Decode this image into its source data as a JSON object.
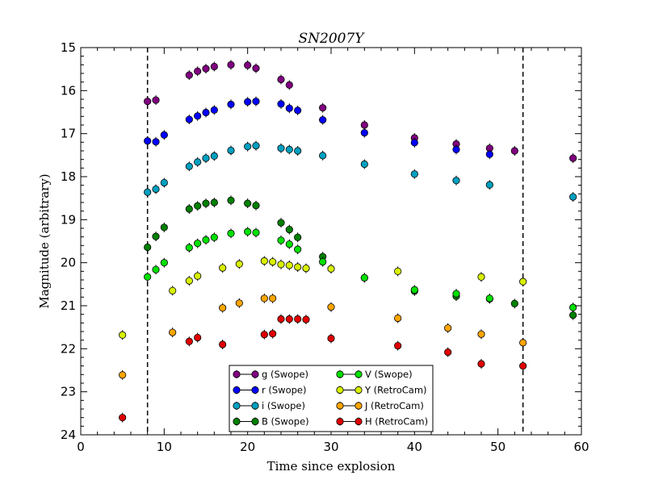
{
  "chart_data": {
    "type": "scatter",
    "title": "SN2007Y",
    "xlabel": "Time since explosion",
    "ylabel": "Magnitude (arbitrary)",
    "xlim": [
      0,
      60
    ],
    "ylim": [
      15,
      24
    ],
    "y_inverted": true,
    "xticks": [
      0,
      10,
      20,
      30,
      40,
      50,
      60
    ],
    "yticks": [
      15,
      16,
      17,
      18,
      19,
      20,
      21,
      22,
      23,
      24
    ],
    "grid": false,
    "legend_position": "bottom-center",
    "vertical_lines": [
      8,
      53
    ],
    "series": [
      {
        "name": "g (Swope)",
        "color": "#800080",
        "points": [
          [
            8,
            16.25
          ],
          [
            9,
            16.22
          ],
          [
            13,
            15.64
          ],
          [
            14,
            15.55
          ],
          [
            15,
            15.49
          ],
          [
            16,
            15.44
          ],
          [
            18,
            15.4
          ],
          [
            20,
            15.41
          ],
          [
            21,
            15.48
          ],
          [
            24,
            15.74
          ],
          [
            25,
            15.87
          ],
          [
            29,
            16.4
          ],
          [
            34,
            16.8
          ],
          [
            40,
            17.1
          ],
          [
            45,
            17.24
          ],
          [
            49,
            17.34
          ],
          [
            52,
            17.4
          ],
          [
            59,
            17.57
          ]
        ]
      },
      {
        "name": "r (Swope)",
        "color": "#0000ff",
        "points": [
          [
            8,
            17.17
          ],
          [
            9,
            17.19
          ],
          [
            10,
            17.03
          ],
          [
            13,
            16.67
          ],
          [
            14,
            16.59
          ],
          [
            15,
            16.51
          ],
          [
            16,
            16.45
          ],
          [
            18,
            16.32
          ],
          [
            20,
            16.26
          ],
          [
            21,
            16.25
          ],
          [
            24,
            16.31
          ],
          [
            25,
            16.41
          ],
          [
            26,
            16.46
          ],
          [
            29,
            16.68
          ],
          [
            34,
            16.98
          ],
          [
            40,
            17.21
          ],
          [
            45,
            17.37
          ],
          [
            49,
            17.48
          ]
        ]
      },
      {
        "name": "i (Swope)",
        "color": "#00a0c0",
        "points": [
          [
            8,
            18.36
          ],
          [
            9,
            18.29
          ],
          [
            10,
            18.14
          ],
          [
            13,
            17.76
          ],
          [
            14,
            17.66
          ],
          [
            15,
            17.57
          ],
          [
            16,
            17.52
          ],
          [
            18,
            17.39
          ],
          [
            20,
            17.3
          ],
          [
            21,
            17.28
          ],
          [
            24,
            17.34
          ],
          [
            25,
            17.37
          ],
          [
            26,
            17.4
          ],
          [
            29,
            17.51
          ],
          [
            34,
            17.71
          ],
          [
            40,
            17.94
          ],
          [
            45,
            18.09
          ],
          [
            49,
            18.19
          ],
          [
            59,
            18.47
          ]
        ]
      },
      {
        "name": "B (Swope)",
        "color": "#008000",
        "points": [
          [
            8,
            19.64
          ],
          [
            9,
            19.39
          ],
          [
            10,
            19.18
          ],
          [
            13,
            18.75
          ],
          [
            14,
            18.68
          ],
          [
            15,
            18.62
          ],
          [
            16,
            18.6
          ],
          [
            18,
            18.55
          ],
          [
            20,
            18.62
          ],
          [
            21,
            18.67
          ],
          [
            24,
            19.07
          ],
          [
            25,
            19.23
          ],
          [
            26,
            19.41
          ],
          [
            29,
            19.86
          ],
          [
            34,
            20.35
          ],
          [
            40,
            20.66
          ],
          [
            45,
            20.78
          ],
          [
            49,
            20.84
          ],
          [
            52,
            20.95
          ],
          [
            59,
            21.22
          ]
        ]
      },
      {
        "name": "V (Swope)",
        "color": "#00e000",
        "points": [
          [
            8,
            20.33
          ],
          [
            9,
            20.16
          ],
          [
            10,
            20.0
          ],
          [
            13,
            19.65
          ],
          [
            14,
            19.55
          ],
          [
            15,
            19.47
          ],
          [
            16,
            19.41
          ],
          [
            18,
            19.32
          ],
          [
            20,
            19.28
          ],
          [
            21,
            19.3
          ],
          [
            24,
            19.48
          ],
          [
            25,
            19.57
          ],
          [
            26,
            19.69
          ],
          [
            29,
            19.98
          ],
          [
            34,
            20.35
          ],
          [
            40,
            20.63
          ],
          [
            45,
            20.72
          ],
          [
            49,
            20.83
          ],
          [
            59,
            21.04
          ]
        ]
      },
      {
        "name": "Y (RetroCam)",
        "color": "#d8f000",
        "points": [
          [
            5,
            21.68
          ],
          [
            11,
            20.65
          ],
          [
            13,
            20.42
          ],
          [
            14,
            20.31
          ],
          [
            17,
            20.12
          ],
          [
            19,
            20.03
          ],
          [
            22,
            19.96
          ],
          [
            23,
            19.98
          ],
          [
            24,
            20.04
          ],
          [
            25,
            20.06
          ],
          [
            26,
            20.1
          ],
          [
            27,
            20.13
          ],
          [
            30,
            20.14
          ],
          [
            38,
            20.2
          ],
          [
            48,
            20.33
          ],
          [
            53,
            20.44
          ]
        ]
      },
      {
        "name": "J (RetroCam)",
        "color": "#ffa500",
        "points": [
          [
            5,
            22.61
          ],
          [
            11,
            21.62
          ],
          [
            17,
            21.05
          ],
          [
            19,
            20.94
          ],
          [
            22,
            20.83
          ],
          [
            23,
            20.83
          ],
          [
            30,
            21.03
          ],
          [
            38,
            21.29
          ],
          [
            44,
            21.52
          ],
          [
            48,
            21.66
          ],
          [
            53,
            21.86
          ]
        ]
      },
      {
        "name": "H (RetroCam)",
        "color": "#e00000",
        "points": [
          [
            5,
            23.6
          ],
          [
            13,
            21.83
          ],
          [
            14,
            21.74
          ],
          [
            17,
            21.9
          ],
          [
            22,
            21.67
          ],
          [
            23,
            21.65
          ],
          [
            24,
            21.31
          ],
          [
            25,
            21.31
          ],
          [
            26,
            21.31
          ],
          [
            27,
            21.32
          ],
          [
            30,
            21.76
          ],
          [
            38,
            21.93
          ],
          [
            44,
            22.08
          ],
          [
            48,
            22.35
          ],
          [
            53,
            22.4
          ]
        ]
      }
    ]
  }
}
